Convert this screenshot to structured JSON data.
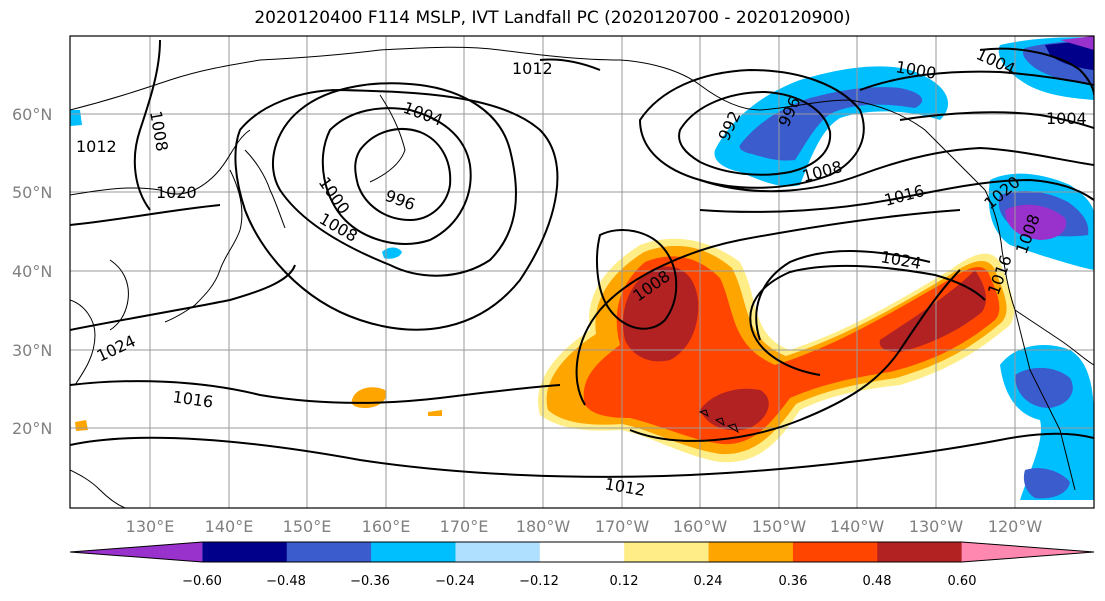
{
  "title": "2020120400 F114 MSLP, IVT Landfall PC (2020120700 - 2020120900)",
  "lat_labels": [
    "60°N",
    "50°N",
    "40°N",
    "30°N",
    "20°N"
  ],
  "lon_labels": [
    "130°E",
    "140°E",
    "150°E",
    "160°E",
    "170°E",
    "180°W",
    "170°W",
    "160°W",
    "150°W",
    "140°W",
    "130°W",
    "120°W"
  ],
  "isobar_labels": [
    "1008",
    "1012",
    "1012",
    "1020",
    "1004",
    "1000",
    "1008",
    "996",
    "1024",
    "1016",
    "1012",
    "1008",
    "992",
    "996",
    "1000",
    "1004",
    "1004",
    "1008",
    "1016",
    "1020",
    "1024",
    "1008",
    "1016"
  ],
  "colorbar": {
    "colors": [
      "#9932CC",
      "#00008B",
      "#3A5CCC",
      "#00BFFF",
      "#B0E0FF",
      "#FFFFFF",
      "#FFEE88",
      "#FFA500",
      "#FF4500",
      "#B22222",
      "#FF88B0"
    ],
    "tick_labels": [
      "−0.60",
      "−0.48",
      "−0.36",
      "−0.24",
      "−0.12",
      "0.12",
      "0.24",
      "0.36",
      "0.48",
      "0.60"
    ]
  }
}
